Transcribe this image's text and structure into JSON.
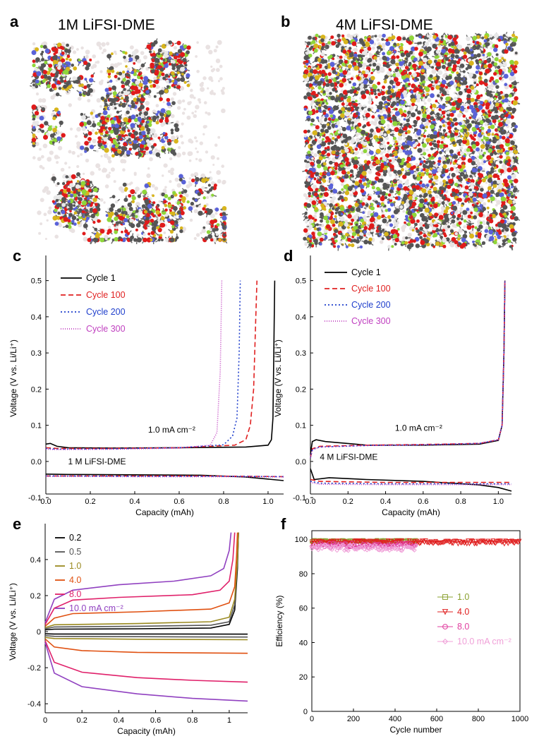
{
  "figure": {
    "panel_a": {
      "letter": "a",
      "title": "1M LiFSI-DME"
    },
    "panel_b": {
      "letter": "b",
      "title": "4M LiFSI-DME"
    },
    "atom_colors": {
      "carbon": "#555555",
      "oxygen": "#e01b1b",
      "sulfur": "#d8b51c",
      "fluorine": "#8fd63a",
      "nitrogen": "#5a62d8",
      "hydrogen": "#e8e8e8"
    }
  },
  "chart_data": [
    {
      "id": "c",
      "letter": "c",
      "type": "line",
      "xlabel": "Capacity (mAh)",
      "ylabel": "Voltage (V vs. Li/Li⁺)",
      "xlim": [
        0,
        1.07
      ],
      "ylim": [
        -0.09,
        0.55
      ],
      "xticks": [
        0.0,
        0.2,
        0.4,
        0.6,
        0.8,
        1.0
      ],
      "xtick_labels": [
        "0.0",
        "0.2",
        "0.4",
        "0.6",
        "0.8",
        "1.0"
      ],
      "yticks": [
        -0.1,
        0.0,
        0.1,
        0.2,
        0.3,
        0.4,
        0.5
      ],
      "ytick_labels": [
        "-0.1",
        "0.0",
        "0.1",
        "0.2",
        "0.3",
        "0.4",
        "0.5"
      ],
      "annotations": [
        {
          "text": "1.0 mA cm⁻²",
          "x": 0.46,
          "y": 0.08
        },
        {
          "text": "1 M LiFSI-DME",
          "x": 0.1,
          "y": -0.008
        }
      ],
      "series": [
        {
          "name": "Cycle 1",
          "color": "#000000",
          "dash": "",
          "x": [
            0,
            0.02,
            0.05,
            0.1,
            0.3,
            0.6,
            0.9,
            1.0,
            1.015,
            1.022,
            1.026,
            1.03
          ],
          "y": [
            0.048,
            0.05,
            0.042,
            0.038,
            0.037,
            0.038,
            0.04,
            0.045,
            0.06,
            0.12,
            0.3,
            0.5
          ],
          "x2": [
            0,
            0.1,
            0.4,
            0.7,
            0.9,
            1.07
          ],
          "y2": [
            -0.035,
            -0.036,
            -0.037,
            -0.038,
            -0.043,
            -0.053
          ]
        },
        {
          "name": "Cycle 100",
          "color": "#e02020",
          "dash": "7,4",
          "x": [
            0,
            0.05,
            0.3,
            0.6,
            0.85,
            0.9,
            0.92,
            0.935,
            0.945,
            0.95
          ],
          "y": [
            0.038,
            0.036,
            0.036,
            0.038,
            0.045,
            0.06,
            0.1,
            0.2,
            0.4,
            0.5
          ],
          "x2": [
            0,
            0.3,
            0.7,
            1.07
          ],
          "y2": [
            -0.04,
            -0.04,
            -0.04,
            -0.042
          ]
        },
        {
          "name": "Cycle 200",
          "color": "#1f3fcc",
          "dash": "2,3",
          "x": [
            0,
            0.05,
            0.3,
            0.6,
            0.8,
            0.84,
            0.86,
            0.87,
            0.875
          ],
          "y": [
            0.036,
            0.034,
            0.035,
            0.038,
            0.046,
            0.07,
            0.12,
            0.3,
            0.5
          ],
          "x2": [
            0,
            0.4,
            0.8,
            1.07
          ],
          "y2": [
            -0.04,
            -0.041,
            -0.041,
            -0.042
          ]
        },
        {
          "name": "Cycle 300",
          "color": "#c040c0",
          "dash": "1,2",
          "x": [
            0,
            0.05,
            0.3,
            0.6,
            0.74,
            0.77,
            0.785,
            0.792
          ],
          "y": [
            0.034,
            0.033,
            0.034,
            0.037,
            0.045,
            0.08,
            0.25,
            0.5
          ],
          "x2": [
            0,
            0.4,
            0.8,
            1.07
          ],
          "y2": [
            -0.041,
            -0.042,
            -0.042,
            -0.043
          ]
        }
      ]
    },
    {
      "id": "d",
      "letter": "d",
      "type": "line",
      "xlabel": "Capacity (mAh)",
      "ylabel": "Voltage (V vs. Li/Li⁺)",
      "xlim": [
        0,
        1.07
      ],
      "ylim": [
        -0.09,
        0.55
      ],
      "xticks": [
        0.0,
        0.2,
        0.4,
        0.6,
        0.8,
        1.0
      ],
      "xtick_labels": [
        "0.0",
        "0.2",
        "0.4",
        "0.6",
        "0.8",
        "1.0"
      ],
      "yticks": [
        -0.1,
        0.0,
        0.1,
        0.2,
        0.3,
        0.4,
        0.5
      ],
      "ytick_labels": [
        "-0.1",
        "0.0",
        "0.1",
        "0.2",
        "0.3",
        "0.4",
        "0.5"
      ],
      "annotations": [
        {
          "text": "1.0 mA cm⁻²",
          "x": 0.45,
          "y": 0.085
        },
        {
          "text": "4 M LiFSI-DME",
          "x": 0.05,
          "y": 0.005
        }
      ],
      "series": [
        {
          "name": "Cycle 1",
          "color": "#000000",
          "dash": "",
          "x": [
            0,
            0.01,
            0.03,
            0.08,
            0.3,
            0.6,
            0.9,
            1.0,
            1.02,
            1.03,
            1.035
          ],
          "y": [
            0.02,
            0.055,
            0.06,
            0.055,
            0.045,
            0.045,
            0.048,
            0.058,
            0.1,
            0.3,
            0.5
          ],
          "x2": [
            0,
            0.02,
            0.1,
            0.3,
            0.6,
            0.9,
            1.0,
            1.07
          ],
          "y2": [
            -0.02,
            -0.05,
            -0.045,
            -0.05,
            -0.055,
            -0.065,
            -0.072,
            -0.082
          ]
        },
        {
          "name": "Cycle 100",
          "color": "#e02020",
          "dash": "7,4",
          "x": [
            0,
            0.01,
            0.05,
            0.3,
            0.6,
            0.9,
            1.0,
            1.02,
            1.03,
            1.035
          ],
          "y": [
            0.01,
            0.035,
            0.042,
            0.045,
            0.047,
            0.05,
            0.06,
            0.1,
            0.3,
            0.5
          ],
          "x2": [
            0,
            0.05,
            0.4,
            0.8,
            1.07
          ],
          "y2": [
            -0.05,
            -0.055,
            -0.058,
            -0.058,
            -0.058
          ]
        },
        {
          "name": "Cycle 200",
          "color": "#1f3fcc",
          "dash": "2,3",
          "x": [
            0,
            0.01,
            0.05,
            0.3,
            0.6,
            0.9,
            1.0,
            1.02,
            1.03,
            1.035
          ],
          "y": [
            0.01,
            0.033,
            0.04,
            0.044,
            0.046,
            0.05,
            0.06,
            0.1,
            0.3,
            0.5
          ],
          "x2": [
            0,
            0.05,
            0.4,
            0.8,
            1.07
          ],
          "y2": [
            -0.055,
            -0.06,
            -0.062,
            -0.062,
            -0.062
          ]
        },
        {
          "name": "Cycle 300",
          "color": "#c040c0",
          "dash": "1,2",
          "x": [
            0,
            0.01,
            0.05,
            0.3,
            0.6,
            0.9,
            1.0,
            1.02,
            1.03,
            1.035
          ],
          "y": [
            0.01,
            0.032,
            0.04,
            0.044,
            0.046,
            0.05,
            0.06,
            0.1,
            0.3,
            0.5
          ],
          "x2": [
            0,
            0.05,
            0.4,
            0.8,
            1.07
          ],
          "y2": [
            -0.058,
            -0.063,
            -0.064,
            -0.064,
            -0.064
          ]
        }
      ]
    },
    {
      "id": "e",
      "letter": "e",
      "type": "line",
      "xlabel": "Capacity (mAh)",
      "ylabel": "Voltage (V vs. Li/Li⁺)",
      "xlim": [
        0,
        1.1
      ],
      "ylim": [
        -0.45,
        0.56
      ],
      "xticks": [
        0,
        0.2,
        0.4,
        0.6,
        0.8,
        1.0
      ],
      "xtick_labels": [
        "0",
        "0.2",
        "0.4",
        "0.6",
        "0.8",
        "1"
      ],
      "yticks": [
        -0.4,
        -0.2,
        0,
        0.2,
        0.4
      ],
      "ytick_labels": [
        "-0.4",
        "-0.2",
        "0",
        "0.2",
        "0.4"
      ],
      "annotations": [],
      "series": [
        {
          "name": "0.2",
          "color": "#000000",
          "dash": "",
          "x": [
            0,
            0.05,
            0.5,
            0.9,
            1.0,
            1.03,
            1.045,
            1.05
          ],
          "y": [
            0.01,
            0.014,
            0.016,
            0.02,
            0.04,
            0.12,
            0.35,
            0.55
          ],
          "x2": [
            0,
            0.05,
            0.5,
            1.1
          ],
          "y2": [
            -0.012,
            -0.013,
            -0.013,
            -0.014
          ]
        },
        {
          "name": "0.5",
          "color": "#555555",
          "dash": "",
          "x": [
            0,
            0.05,
            0.5,
            0.9,
            1.0,
            1.03,
            1.045,
            1.05
          ],
          "y": [
            0.016,
            0.026,
            0.03,
            0.036,
            0.055,
            0.15,
            0.38,
            0.55
          ],
          "x2": [
            0,
            0.05,
            0.5,
            1.1
          ],
          "y2": [
            -0.022,
            -0.026,
            -0.028,
            -0.03
          ]
        },
        {
          "name": "1.0",
          "color": "#9a8a20",
          "dash": "",
          "x": [
            0,
            0.05,
            0.5,
            0.9,
            1.0,
            1.03,
            1.045,
            1.05
          ],
          "y": [
            0.022,
            0.038,
            0.045,
            0.055,
            0.08,
            0.18,
            0.4,
            0.55
          ],
          "x2": [
            0,
            0.05,
            0.5,
            1.1
          ],
          "y2": [
            -0.032,
            -0.038,
            -0.042,
            -0.045
          ]
        },
        {
          "name": "4.0",
          "color": "#e05010",
          "dash": "",
          "x": [
            0,
            0.05,
            0.15,
            0.5,
            0.9,
            1.0,
            1.03,
            1.04,
            1.045
          ],
          "y": [
            0.03,
            0.075,
            0.1,
            0.11,
            0.125,
            0.16,
            0.25,
            0.42,
            0.55
          ],
          "x2": [
            0,
            0.05,
            0.2,
            0.5,
            1.1
          ],
          "y2": [
            -0.04,
            -0.085,
            -0.105,
            -0.115,
            -0.12
          ]
        },
        {
          "name": "8.0",
          "color": "#e0206a",
          "dash": "",
          "x": [
            0,
            0.05,
            0.15,
            0.4,
            0.8,
            0.95,
            1.0,
            1.02,
            1.03
          ],
          "y": [
            0.04,
            0.13,
            0.175,
            0.19,
            0.205,
            0.23,
            0.28,
            0.4,
            0.55
          ],
          "x2": [
            0,
            0.05,
            0.2,
            0.5,
            0.8,
            1.1
          ],
          "y2": [
            -0.05,
            -0.17,
            -0.225,
            -0.255,
            -0.27,
            -0.28
          ]
        },
        {
          "name": "10.0 mA cm⁻²",
          "color": "#9040c0",
          "dash": "",
          "x": [
            0,
            0.05,
            0.15,
            0.4,
            0.7,
            0.9,
            0.97,
            1.0,
            1.01
          ],
          "y": [
            0.05,
            0.18,
            0.23,
            0.26,
            0.28,
            0.31,
            0.35,
            0.45,
            0.55
          ],
          "x2": [
            0,
            0.05,
            0.2,
            0.5,
            0.8,
            1.1
          ],
          "y2": [
            -0.06,
            -0.23,
            -0.305,
            -0.345,
            -0.37,
            -0.385
          ]
        }
      ]
    },
    {
      "id": "f",
      "letter": "f",
      "type": "scatter",
      "xlabel": "Cycle number",
      "ylabel": "Efficiency (%)",
      "xlim": [
        0,
        1000
      ],
      "ylim": [
        0,
        105
      ],
      "xticks": [
        0,
        200,
        400,
        600,
        800,
        1000
      ],
      "xtick_labels": [
        "0",
        "200",
        "400",
        "600",
        "800",
        "1000"
      ],
      "yticks": [
        0,
        20,
        40,
        60,
        80,
        100
      ],
      "ytick_labels": [
        "0",
        "20",
        "40",
        "60",
        "80",
        "100"
      ],
      "annotations": [],
      "series": [
        {
          "name": "1.0",
          "color": "#8aa030",
          "marker": "square",
          "x_range": [
            1,
            500
          ],
          "y_center": 99.0,
          "y_noise": 0.4
        },
        {
          "name": "4.0",
          "color": "#e02020",
          "marker": "triangle",
          "x_range": [
            1,
            1000
          ],
          "y_center": 98.3,
          "y_noise": 1.0
        },
        {
          "name": "8.0",
          "color": "#e040a0",
          "marker": "circle",
          "x_range": [
            1,
            500
          ],
          "y_center": 96.5,
          "y_noise": 1.4
        },
        {
          "name": "10.0 mA cm⁻²",
          "color": "#f0a0d8",
          "marker": "diamond",
          "x_range": [
            1,
            500
          ],
          "y_center": 95.2,
          "y_noise": 1.8
        }
      ]
    }
  ]
}
